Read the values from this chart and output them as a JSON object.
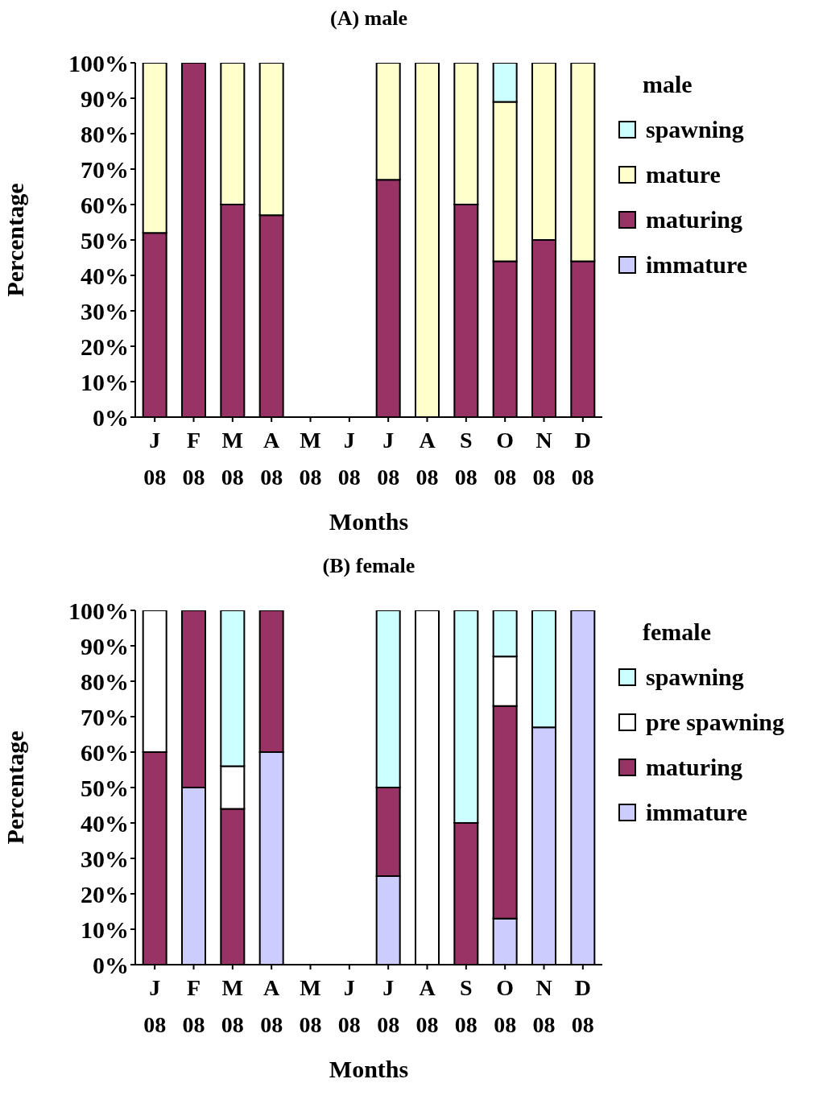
{
  "chart_data": [
    {
      "type": "bar",
      "title": "(A) male",
      "xlabel": "Months",
      "ylabel": "Percentage",
      "legend_title": "male",
      "stacked": true,
      "legend": "right",
      "categories": [
        "J 08",
        "F 08",
        "M 08",
        "A 08",
        "M 08",
        "J 08",
        "J 08",
        "A 08",
        "S 08",
        "O 08",
        "N 08",
        "D 08"
      ],
      "ylim": [
        0,
        100
      ],
      "yticks": [
        {
          "value": 0,
          "label": "0%"
        },
        {
          "value": 10,
          "label": "10%"
        },
        {
          "value": 20,
          "label": "20%"
        },
        {
          "value": 30,
          "label": "30%"
        },
        {
          "value": 40,
          "label": "40%"
        },
        {
          "value": 50,
          "label": "50%"
        },
        {
          "value": 60,
          "label": "60%"
        },
        {
          "value": 70,
          "label": "70%"
        },
        {
          "value": 80,
          "label": "80%"
        },
        {
          "value": 90,
          "label": "90%"
        },
        {
          "value": 100,
          "label": "100%"
        }
      ],
      "series": [
        {
          "name": "immature",
          "color": "#ccccff",
          "values": [
            0,
            0,
            0,
            0,
            null,
            null,
            0,
            0,
            0,
            0,
            0,
            0
          ]
        },
        {
          "name": "maturing",
          "color": "#993366",
          "values": [
            52,
            100,
            60,
            57,
            null,
            null,
            67,
            0,
            60,
            44,
            50,
            44
          ]
        },
        {
          "name": "mature",
          "color": "#ffffcc",
          "values": [
            48,
            0,
            40,
            43,
            null,
            null,
            33,
            100,
            40,
            45,
            50,
            56
          ]
        },
        {
          "name": "spawning",
          "color": "#ccffff",
          "values": [
            0,
            0,
            0,
            0,
            null,
            null,
            0,
            0,
            0,
            11,
            0,
            0
          ]
        }
      ]
    },
    {
      "type": "bar",
      "title": "(B) female",
      "xlabel": "Months",
      "ylabel": "Percentage",
      "legend_title": "female",
      "stacked": true,
      "legend": "right",
      "categories": [
        "J 08",
        "F 08",
        "M 08",
        "A 08",
        "M 08",
        "J 08",
        "J 08",
        "A 08",
        "S 08",
        "O 08",
        "N 08",
        "D 08"
      ],
      "ylim": [
        0,
        100
      ],
      "yticks": [
        {
          "value": 0,
          "label": "0%"
        },
        {
          "value": 10,
          "label": "10%"
        },
        {
          "value": 20,
          "label": "20%"
        },
        {
          "value": 30,
          "label": "30%"
        },
        {
          "value": 40,
          "label": "40%"
        },
        {
          "value": 50,
          "label": "50%"
        },
        {
          "value": 60,
          "label": "60%"
        },
        {
          "value": 70,
          "label": "70%"
        },
        {
          "value": 80,
          "label": "80%"
        },
        {
          "value": 90,
          "label": "90%"
        },
        {
          "value": 100,
          "label": "100%"
        }
      ],
      "series": [
        {
          "name": "immature",
          "color": "#ccccff",
          "values": [
            0,
            50,
            0,
            60,
            null,
            null,
            25,
            0,
            0,
            13,
            67,
            100
          ]
        },
        {
          "name": "maturing",
          "color": "#993366",
          "values": [
            60,
            50,
            44,
            40,
            null,
            null,
            25,
            0,
            40,
            60,
            0,
            0
          ]
        },
        {
          "name": "pre spawning",
          "color": "#ffffff",
          "values": [
            40,
            0,
            12,
            0,
            null,
            null,
            0,
            100,
            0,
            14,
            0,
            0
          ]
        },
        {
          "name": "spawning",
          "color": "#ccffff",
          "values": [
            0,
            0,
            44,
            0,
            null,
            null,
            50,
            0,
            60,
            13,
            33,
            0
          ]
        }
      ]
    }
  ]
}
